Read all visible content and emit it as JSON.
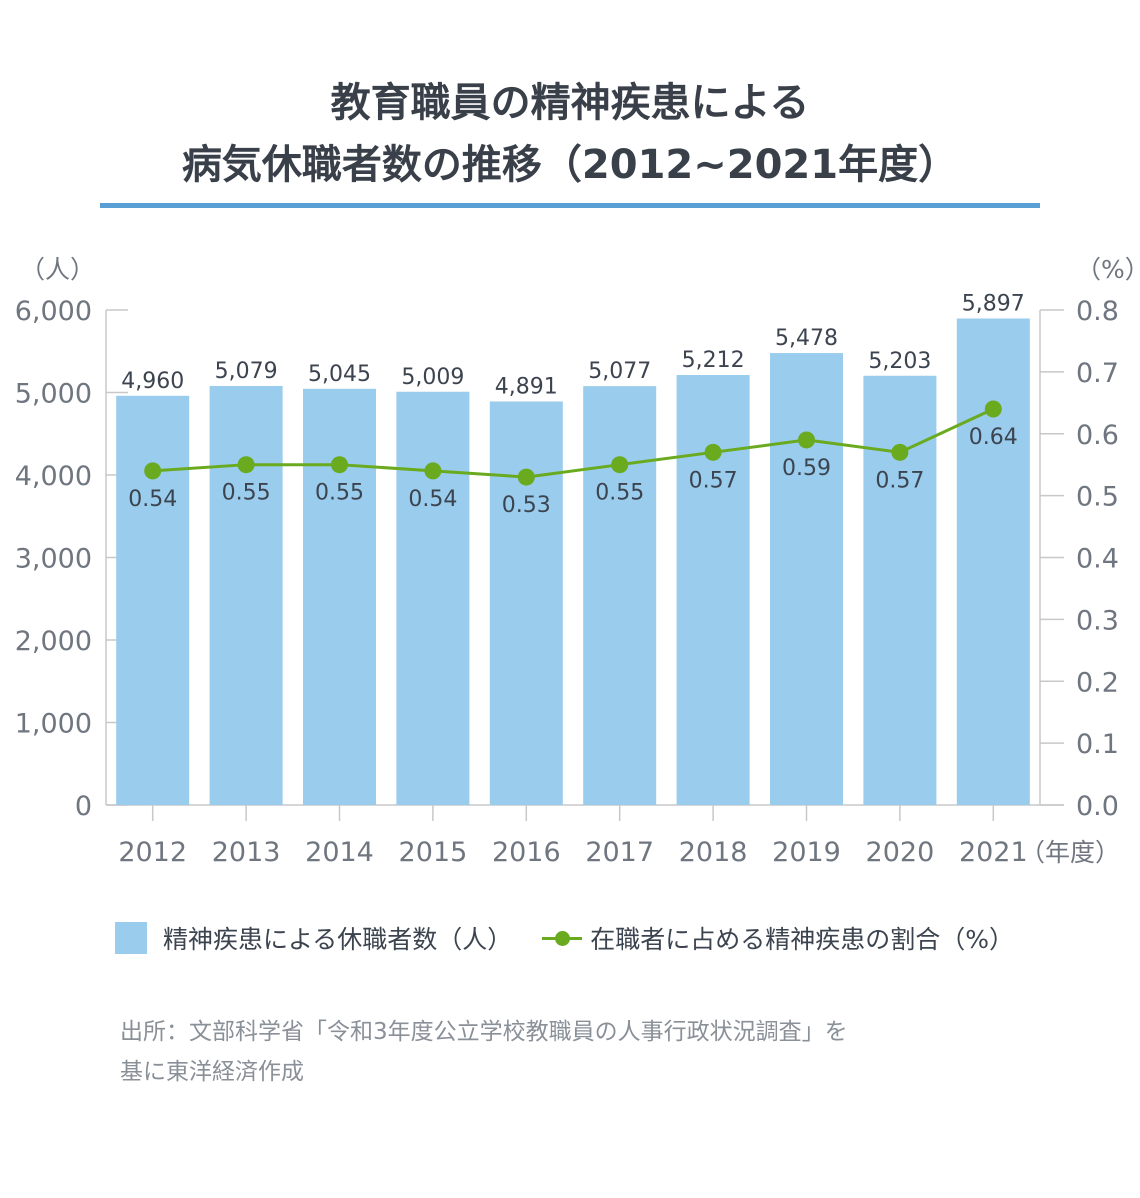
{
  "chart_data": {
    "type": "bar+line",
    "title_line1": "教育職員の精神疾患による",
    "title_line2": "病気休職者数の推移（2012~2021年度）",
    "left_axis_unit": "（人）",
    "right_axis_unit": "（%）",
    "x_axis_unit": "（年度）",
    "categories": [
      "2012",
      "2013",
      "2014",
      "2015",
      "2016",
      "2017",
      "2018",
      "2019",
      "2020",
      "2021"
    ],
    "left_ylim": [
      0,
      6000
    ],
    "left_ticks": [
      0,
      1000,
      2000,
      3000,
      4000,
      5000,
      6000
    ],
    "left_tick_labels": [
      "0",
      "1,000",
      "2,000",
      "3,000",
      "4,000",
      "5,000",
      "6,000"
    ],
    "right_ylim": [
      0,
      0.8
    ],
    "right_ticks": [
      0,
      0.1,
      0.2,
      0.3,
      0.4,
      0.5,
      0.6,
      0.7,
      0.8
    ],
    "right_tick_labels": [
      "0.0",
      "0.1",
      "0.2",
      "0.3",
      "0.4",
      "0.5",
      "0.6",
      "0.7",
      "0.8"
    ],
    "series": [
      {
        "name": "精神疾患による休職者数（人）",
        "type": "bar",
        "axis": "left",
        "values": [
          4960,
          5079,
          5045,
          5009,
          4891,
          5077,
          5212,
          5478,
          5203,
          5897
        ],
        "labels": [
          "4,960",
          "5,079",
          "5,045",
          "5,009",
          "4,891",
          "5,077",
          "5,212",
          "5,478",
          "5,203",
          "5,897"
        ]
      },
      {
        "name": "在職者に占める精神疾患の割合（%）",
        "type": "line",
        "axis": "right",
        "values": [
          0.54,
          0.55,
          0.55,
          0.54,
          0.53,
          0.55,
          0.57,
          0.59,
          0.57,
          0.64
        ],
        "labels": [
          "0.54",
          "0.55",
          "0.55",
          "0.54",
          "0.53",
          "0.55",
          "0.57",
          "0.59",
          "0.57",
          "0.64"
        ]
      }
    ],
    "colors": {
      "bar": "#99cced",
      "line": "#6aaa1e",
      "axis": "#c8c8c8",
      "text": "#3c4450"
    }
  },
  "source_line1": "出所：文部科学省「令和3年度公立学校教職員の人事行政状況調査」を",
  "source_line2": "基に東洋経済作成"
}
